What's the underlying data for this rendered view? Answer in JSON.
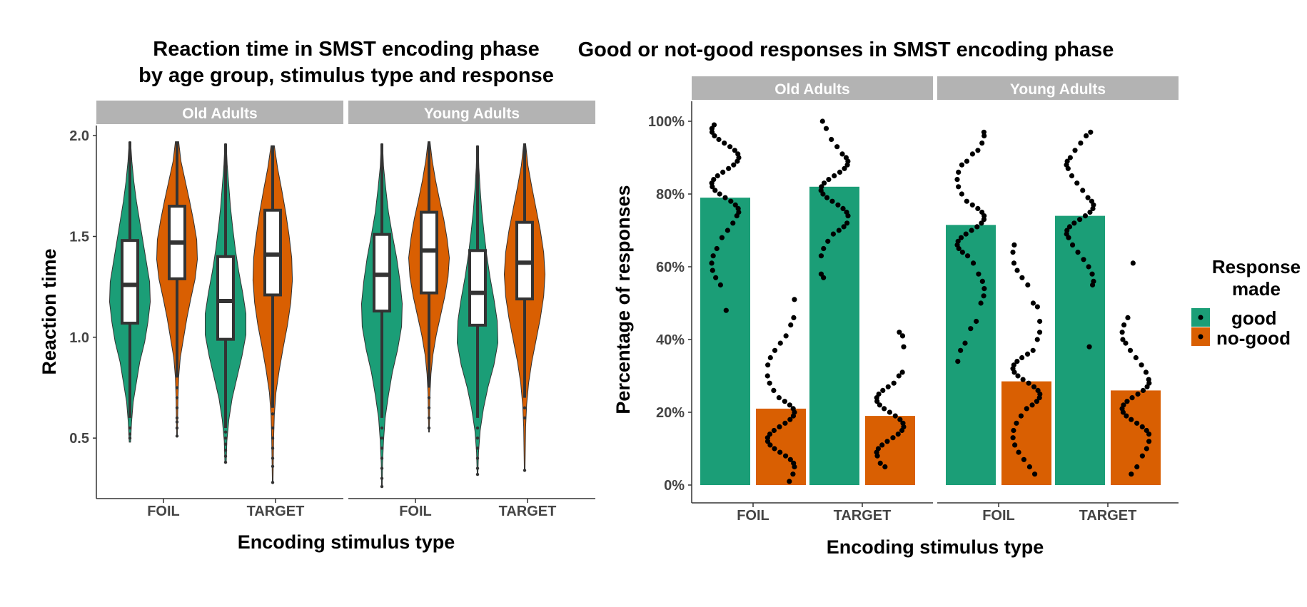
{
  "chart_data": [
    {
      "type": "violin",
      "title": [
        "Reaction time in SMST encoding phase",
        "by age group, stimulus type and response"
      ],
      "xlabel": "Encoding stimulus type",
      "ylabel": "Reaction time",
      "ylim": [
        0.2,
        2.05
      ],
      "yticks": [
        0.5,
        1.0,
        1.5,
        2.0
      ],
      "ytick_labels": [
        "0.5",
        "1.0",
        "1.5",
        "2.0"
      ],
      "categories": [
        "FOIL",
        "TARGET"
      ],
      "facets": [
        "Old Adults",
        "Young Adults"
      ],
      "groups": [
        {
          "facet": "Old Adults",
          "x": "FOIL",
          "response": "good",
          "min": 0.48,
          "max": 1.97,
          "q1": 1.07,
          "median": 1.26,
          "q3": 1.48,
          "whisker_low": 0.6,
          "whisker_high": 1.97,
          "outliers": [
            0.55,
            0.52,
            0.5
          ],
          "widths": [
            0.02,
            0.05,
            0.1,
            0.2,
            0.3,
            0.45,
            0.55,
            0.62,
            0.6,
            0.5,
            0.4,
            0.3,
            0.2,
            0.12,
            0.06,
            0.02
          ]
        },
        {
          "facet": "Old Adults",
          "x": "FOIL",
          "response": "no-good",
          "min": 0.51,
          "max": 1.97,
          "q1": 1.29,
          "median": 1.47,
          "q3": 1.65,
          "whisker_low": 0.8,
          "whisker_high": 1.97,
          "outliers": [
            0.75,
            0.7,
            0.65,
            0.6,
            0.58,
            0.55,
            0.51
          ],
          "widths": [
            0.01,
            0.02,
            0.03,
            0.05,
            0.1,
            0.2,
            0.3,
            0.42,
            0.55,
            0.62,
            0.6,
            0.5,
            0.38,
            0.25,
            0.12,
            0.05
          ]
        },
        {
          "facet": "Old Adults",
          "x": "TARGET",
          "response": "good",
          "min": 0.38,
          "max": 1.96,
          "q1": 0.99,
          "median": 1.18,
          "q3": 1.4,
          "whisker_low": 0.55,
          "whisker_high": 1.96,
          "outliers": [
            0.53,
            0.5,
            0.47,
            0.44,
            0.41,
            0.38
          ],
          "widths": [
            0.02,
            0.04,
            0.1,
            0.2,
            0.35,
            0.5,
            0.62,
            0.62,
            0.52,
            0.4,
            0.3,
            0.22,
            0.15,
            0.1,
            0.05,
            0.02
          ]
        },
        {
          "facet": "Old Adults",
          "x": "TARGET",
          "response": "no-good",
          "min": 0.28,
          "max": 1.95,
          "q1": 1.21,
          "median": 1.41,
          "q3": 1.63,
          "whisker_low": 0.65,
          "whisker_high": 1.95,
          "outliers": [
            0.62,
            0.55,
            0.5,
            0.45,
            0.4,
            0.36,
            0.28
          ],
          "widths": [
            0.01,
            0.02,
            0.03,
            0.05,
            0.1,
            0.2,
            0.32,
            0.45,
            0.55,
            0.6,
            0.58,
            0.5,
            0.4,
            0.28,
            0.15,
            0.05
          ]
        },
        {
          "facet": "Young Adults",
          "x": "FOIL",
          "response": "good",
          "min": 0.26,
          "max": 1.96,
          "q1": 1.13,
          "median": 1.31,
          "q3": 1.51,
          "whisker_low": 0.6,
          "whisker_high": 1.96,
          "outliers": [
            0.55,
            0.5,
            0.45,
            0.4,
            0.35,
            0.3,
            0.26
          ],
          "widths": [
            0.01,
            0.02,
            0.05,
            0.1,
            0.2,
            0.32,
            0.48,
            0.6,
            0.62,
            0.55,
            0.45,
            0.32,
            0.2,
            0.12,
            0.05,
            0.02
          ]
        },
        {
          "facet": "Young Adults",
          "x": "FOIL",
          "response": "no-good",
          "min": 0.53,
          "max": 1.97,
          "q1": 1.22,
          "median": 1.43,
          "q3": 1.62,
          "whisker_low": 0.75,
          "whisker_high": 1.97,
          "outliers": [
            0.7,
            0.65,
            0.6,
            0.55
          ],
          "widths": [
            0.01,
            0.02,
            0.03,
            0.06,
            0.12,
            0.22,
            0.35,
            0.48,
            0.58,
            0.62,
            0.55,
            0.45,
            0.32,
            0.2,
            0.1,
            0.03
          ]
        },
        {
          "facet": "Young Adults",
          "x": "TARGET",
          "response": "good",
          "min": 0.32,
          "max": 1.95,
          "q1": 1.06,
          "median": 1.22,
          "q3": 1.43,
          "whisker_low": 0.6,
          "whisker_high": 1.95,
          "outliers": [
            0.55,
            0.5,
            0.45,
            0.4,
            0.35,
            0.32
          ],
          "widths": [
            0.01,
            0.03,
            0.08,
            0.18,
            0.32,
            0.5,
            0.62,
            0.6,
            0.5,
            0.38,
            0.28,
            0.2,
            0.13,
            0.08,
            0.04,
            0.02
          ]
        },
        {
          "facet": "Young Adults",
          "x": "TARGET",
          "response": "no-good",
          "min": 0.34,
          "max": 1.96,
          "q1": 1.19,
          "median": 1.37,
          "q3": 1.57,
          "whisker_low": 0.7,
          "whisker_high": 1.96,
          "outliers": [
            0.65,
            0.6,
            0.34
          ],
          "widths": [
            0.01,
            0.02,
            0.03,
            0.06,
            0.12,
            0.22,
            0.35,
            0.48,
            0.58,
            0.62,
            0.58,
            0.48,
            0.35,
            0.22,
            0.1,
            0.03
          ]
        }
      ]
    },
    {
      "type": "bar",
      "title": "Good or not-good responses in SMST encoding phase",
      "xlabel": "Encoding stimulus type",
      "ylabel": "Percentage of responses",
      "ylim": [
        0,
        105
      ],
      "yticks": [
        0,
        20,
        40,
        60,
        80,
        100
      ],
      "ytick_labels": [
        "0%",
        "20%",
        "40%",
        "60%",
        "80%",
        "100%"
      ],
      "categories": [
        "FOIL",
        "TARGET"
      ],
      "facets": [
        "Old Adults",
        "Young Adults"
      ],
      "legend": {
        "title": [
          "Response",
          "made"
        ],
        "entries": [
          "good",
          "no-good"
        ],
        "position": "right"
      },
      "bars": [
        {
          "facet": "Old Adults",
          "x": "FOIL",
          "response": "good",
          "value": 79,
          "points": [
            99,
            98,
            97,
            96,
            95,
            94,
            93,
            92,
            91,
            90,
            89,
            88,
            87,
            86,
            85,
            84,
            83,
            82,
            81,
            80,
            79,
            78,
            77,
            76,
            75,
            74,
            72,
            70,
            68,
            65,
            63,
            61,
            59,
            57,
            55,
            48
          ]
        },
        {
          "facet": "Old Adults",
          "x": "FOIL",
          "response": "no-good",
          "value": 21,
          "points": [
            51,
            46,
            44,
            41,
            39,
            37,
            35,
            33,
            30,
            28,
            26,
            24,
            23,
            22,
            21,
            20,
            19,
            18,
            17,
            16,
            15,
            14,
            13,
            12,
            11,
            10,
            9,
            8,
            7,
            6,
            5,
            3,
            1
          ]
        },
        {
          "facet": "Old Adults",
          "x": "TARGET",
          "response": "good",
          "value": 82,
          "points": [
            100,
            98,
            95,
            93,
            91,
            90,
            89,
            88,
            87,
            86,
            85,
            84,
            83,
            82,
            81,
            80,
            79,
            78,
            77,
            76,
            75,
            74,
            72,
            71,
            70,
            69,
            67,
            65,
            63,
            58,
            57
          ]
        },
        {
          "facet": "Old Adults",
          "x": "TARGET",
          "response": "no-good",
          "value": 19,
          "points": [
            42,
            41,
            38,
            31,
            30,
            28,
            27,
            26,
            25,
            24,
            23,
            22,
            21,
            20,
            19,
            18,
            17,
            16,
            15,
            14,
            13,
            12,
            11,
            10,
            9,
            8,
            6,
            5
          ]
        },
        {
          "facet": "Young Adults",
          "x": "FOIL",
          "response": "good",
          "value": 71.5,
          "points": [
            97,
            96,
            94,
            92,
            91,
            89,
            88,
            86,
            84,
            82,
            80,
            78,
            77,
            76,
            75,
            74,
            73,
            72,
            71,
            70,
            69,
            68,
            67,
            66,
            65,
            64,
            63,
            61,
            58,
            56,
            54,
            52,
            50,
            45,
            43,
            39,
            37,
            34
          ]
        },
        {
          "facet": "Young Adults",
          "x": "FOIL",
          "response": "no-good",
          "value": 28.5,
          "points": [
            66,
            64,
            61,
            59,
            57,
            55,
            50,
            49,
            45,
            42,
            40,
            37,
            36,
            35,
            34,
            33,
            32,
            31,
            30,
            29,
            28,
            27,
            26,
            25,
            24,
            23,
            22,
            21,
            19,
            17,
            15,
            13,
            11,
            9,
            7,
            5,
            3
          ]
        },
        {
          "facet": "Young Adults",
          "x": "TARGET",
          "response": "good",
          "value": 74,
          "points": [
            97,
            96,
            94,
            92,
            90,
            89,
            88,
            87,
            85,
            83,
            81,
            79,
            78,
            77,
            76,
            75,
            74,
            73,
            72,
            71,
            70,
            69,
            68,
            66,
            64,
            62,
            60,
            58,
            56,
            55,
            38
          ]
        },
        {
          "facet": "Young Adults",
          "x": "TARGET",
          "response": "no-good",
          "value": 26,
          "points": [
            61,
            46,
            44,
            42,
            40,
            39,
            37,
            35,
            33,
            31,
            29,
            28,
            27,
            26,
            25,
            24,
            23,
            22,
            21,
            20,
            19,
            18,
            17,
            16,
            15,
            14,
            12,
            10,
            8,
            5,
            3
          ]
        }
      ]
    }
  ],
  "colors": {
    "good": "#1b9e77",
    "no-good": "#d95f02",
    "strip": "#b3b3b3",
    "box": "#ffffff",
    "line": "#333333"
  }
}
